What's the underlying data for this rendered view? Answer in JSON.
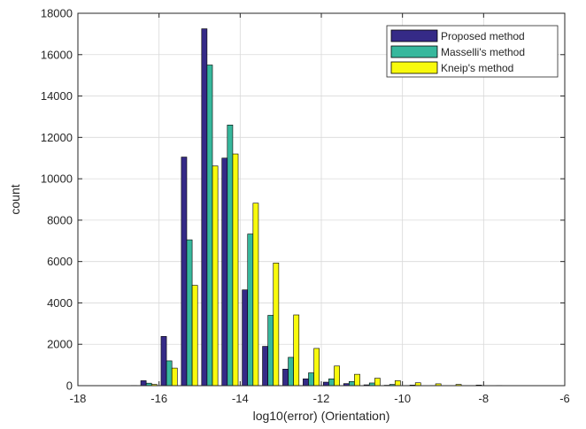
{
  "chart_data": {
    "type": "bar",
    "xlabel": "log10(error) (Orientation)",
    "ylabel": "count",
    "xlim": [
      -18,
      -6
    ],
    "ylim": [
      0,
      18000
    ],
    "xticks": [
      "-18",
      "-16",
      "-14",
      "-12",
      "-10",
      "-8",
      "-6"
    ],
    "yticks": [
      "0",
      "2000",
      "4000",
      "6000",
      "8000",
      "10000",
      "12000",
      "14000",
      "16000",
      "18000"
    ],
    "grid": true,
    "legend_position": "top-right",
    "bin_centers": [
      -17.75,
      -17.25,
      -16.75,
      -16.25,
      -15.75,
      -15.25,
      -14.75,
      -14.25,
      -13.75,
      -13.25,
      -12.75,
      -12.25,
      -11.75,
      -11.25,
      -10.75,
      -10.25,
      -9.75,
      -9.25,
      -8.75,
      -8.25,
      -7.75,
      -7.25,
      -6.75,
      -6.25
    ],
    "series": [
      {
        "name": "Proposed method",
        "color": "#352a87",
        "values": [
          0,
          0,
          0,
          240,
          2380,
          11050,
          17250,
          11000,
          4630,
          1900,
          800,
          330,
          170,
          100,
          40,
          20,
          10,
          0,
          0,
          0,
          0,
          0,
          0,
          0
        ]
      },
      {
        "name": "Masselli's method",
        "color": "#37b89d",
        "values": [
          0,
          0,
          0,
          120,
          1200,
          7050,
          15500,
          12600,
          7330,
          3400,
          1370,
          620,
          330,
          200,
          130,
          60,
          30,
          10,
          0,
          0,
          0,
          0,
          0,
          0
        ]
      },
      {
        "name": "Kneip's method",
        "color": "#f8fa0d",
        "values": [
          0,
          0,
          10,
          60,
          850,
          4850,
          10620,
          11200,
          8820,
          5930,
          3420,
          1800,
          950,
          550,
          360,
          240,
          140,
          90,
          60,
          30,
          10,
          0,
          0,
          0
        ]
      }
    ]
  }
}
